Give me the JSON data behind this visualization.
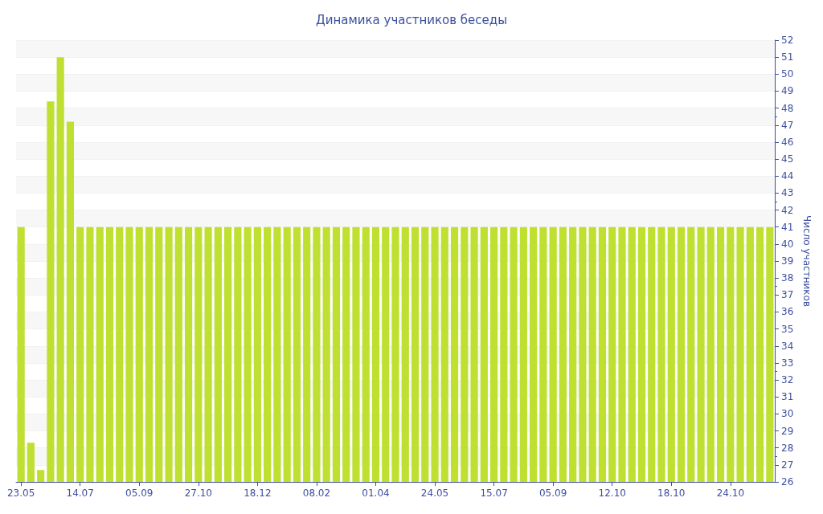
{
  "chart_data": {
    "type": "bar",
    "title": "Динамика участников беседы",
    "ylabel": "Число участников",
    "categories": [
      "23.05",
      null,
      null,
      null,
      null,
      null,
      "14.07",
      null,
      null,
      null,
      null,
      null,
      "05.09",
      null,
      null,
      null,
      null,
      null,
      "27.10",
      null,
      null,
      null,
      null,
      null,
      "18.12",
      null,
      null,
      null,
      null,
      null,
      "08.02",
      null,
      null,
      null,
      null,
      null,
      "01.04",
      null,
      null,
      null,
      null,
      null,
      "24.05",
      null,
      null,
      null,
      null,
      null,
      "15.07",
      null,
      null,
      null,
      null,
      null,
      "05.09",
      null,
      null,
      null,
      null,
      null,
      "12.10",
      null,
      null,
      null,
      null,
      null,
      "18.10",
      null,
      null,
      null,
      null,
      null,
      "24.10",
      null,
      null,
      null,
      null
    ],
    "values": [
      41,
      28.3,
      26.7,
      48.4,
      51,
      47.2,
      41,
      41,
      41,
      41,
      41,
      41,
      41,
      41,
      41,
      41,
      41,
      41,
      41,
      41,
      41,
      41,
      41,
      41,
      41,
      41,
      41,
      41,
      41,
      41,
      41,
      41,
      41,
      41,
      41,
      41,
      41,
      41,
      41,
      41,
      41,
      41,
      41,
      41,
      41,
      41,
      41,
      41,
      41,
      41,
      41,
      41,
      41,
      41,
      41,
      41,
      41,
      41,
      41,
      41,
      41,
      41,
      41,
      41,
      41,
      41,
      41,
      41,
      41,
      41,
      41,
      41,
      41,
      41,
      41,
      41,
      41
    ],
    "color": "#bfe031",
    "ylim": [
      26,
      52
    ],
    "yticks": [
      26,
      27,
      28,
      29,
      30,
      31,
      32,
      33,
      34,
      35,
      36,
      37,
      38,
      39,
      40,
      41,
      42,
      43,
      44,
      45,
      46,
      47,
      48,
      49,
      50,
      51,
      52
    ],
    "grid": true
  }
}
